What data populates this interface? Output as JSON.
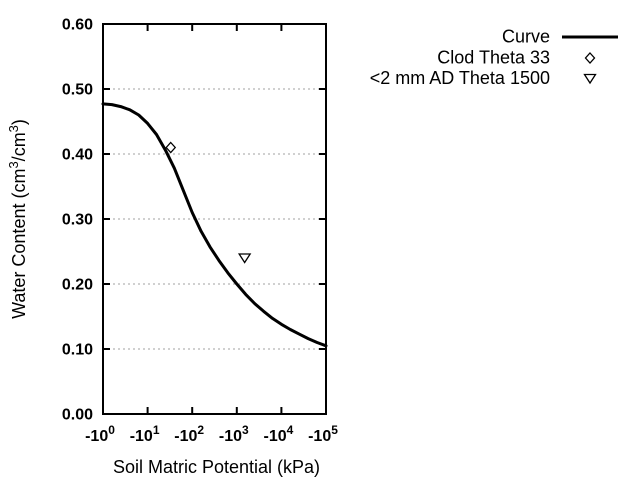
{
  "colors": {
    "foreground": "#000000",
    "background": "#ffffff",
    "grid": "#a0a0a0"
  },
  "chart_data": {
    "type": "line",
    "title": "",
    "xlabel": "Soil Matric Potential (kPa)",
    "ylabel_text": "Water Content (cm3/cm3)",
    "ylabel_parts": [
      {
        "text": "Water Content (cm"
      },
      {
        "text": "3",
        "sup": true
      },
      {
        "text": "/cm"
      },
      {
        "text": "3",
        "sup": true
      },
      {
        "text": ")"
      }
    ],
    "x_scale": "negative-log10-kPa",
    "x_tick_base": "-10",
    "x_tick_exponents": [
      "0",
      "1",
      "2",
      "3",
      "4",
      "5"
    ],
    "x_range_decades": [
      0,
      5
    ],
    "ylim": [
      0.0,
      0.6
    ],
    "y_tick_labels": [
      "0.00",
      "0.10",
      "0.20",
      "0.30",
      "0.40",
      "0.50",
      "0.60"
    ],
    "y_tick_values": [
      0.0,
      0.1,
      0.2,
      0.3,
      0.4,
      0.5,
      0.6
    ],
    "grid": {
      "horizontal_dotted_levels": [
        0.1,
        0.2,
        0.3,
        0.4,
        0.5
      ],
      "vertical": false,
      "color": "#a0a0a0"
    },
    "series": [
      {
        "name": "Curve",
        "kind": "line",
        "marker": "solid-line",
        "color": "#000000",
        "points_decade_theta": [
          [
            0.0,
            0.477
          ],
          [
            0.2,
            0.476
          ],
          [
            0.4,
            0.473
          ],
          [
            0.6,
            0.468
          ],
          [
            0.8,
            0.46
          ],
          [
            1.0,
            0.447
          ],
          [
            1.2,
            0.43
          ],
          [
            1.4,
            0.406
          ],
          [
            1.6,
            0.378
          ],
          [
            1.8,
            0.344
          ],
          [
            2.0,
            0.31
          ],
          [
            2.2,
            0.281
          ],
          [
            2.4,
            0.257
          ],
          [
            2.6,
            0.236
          ],
          [
            2.8,
            0.217
          ],
          [
            3.0,
            0.2
          ],
          [
            3.2,
            0.184
          ],
          [
            3.4,
            0.17
          ],
          [
            3.6,
            0.158
          ],
          [
            3.8,
            0.147
          ],
          [
            4.0,
            0.138
          ],
          [
            4.2,
            0.13
          ],
          [
            4.4,
            0.123
          ],
          [
            4.6,
            0.116
          ],
          [
            4.8,
            0.11
          ],
          [
            5.0,
            0.105
          ]
        ]
      },
      {
        "name": "Clod Theta 33",
        "kind": "scatter",
        "marker": "diamond-open",
        "color": "#000000",
        "points_kpa_theta": [
          [
            -33,
            0.41
          ]
        ]
      },
      {
        "name": "<2 mm AD Theta 1500",
        "kind": "scatter",
        "marker": "triangle-down-open",
        "color": "#000000",
        "points_kpa_theta": [
          [
            -1500,
            0.24
          ]
        ]
      }
    ],
    "legend": {
      "position": "top-right-outside-plot",
      "entries": [
        {
          "label": "Curve",
          "marker": "solid-line"
        },
        {
          "label": "Clod Theta 33",
          "marker": "diamond-open"
        },
        {
          "label": "<2 mm AD Theta 1500",
          "marker": "triangle-down-open"
        }
      ]
    }
  }
}
